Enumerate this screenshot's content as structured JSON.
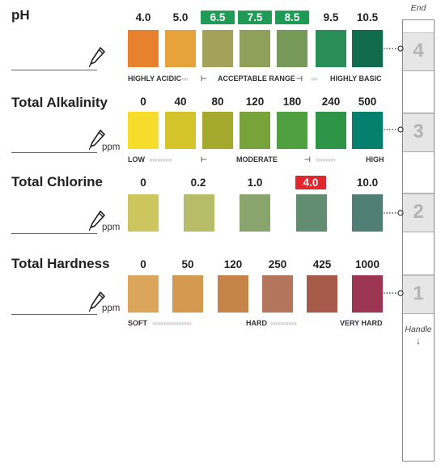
{
  "strip": {
    "end_label": "End",
    "handle_label": "Handle",
    "handle_arrow": "↓",
    "pads": [
      "4",
      "3",
      "2",
      "1"
    ]
  },
  "unit": "ppm",
  "sections": [
    {
      "title": "pH",
      "values": [
        {
          "label": "4.0",
          "color": "#E8812E"
        },
        {
          "label": "5.0",
          "color": "#E7A23A"
        },
        {
          "label": "6.5",
          "color": "#A3A25A",
          "highlight": "#1E9B55"
        },
        {
          "label": "7.5",
          "color": "#8FA05B",
          "highlight": "#1E9B55"
        },
        {
          "label": "8.5",
          "color": "#77995A",
          "highlight": "#1E9B55"
        },
        {
          "label": "9.5",
          "color": "#2A8E58"
        },
        {
          "label": "10.5",
          "color": "#116C4E"
        }
      ],
      "scale": {
        "low": "HIGHLY ACIDIC",
        "mid": "ACCEPTABLE RANGE",
        "high": "HIGHLY BASIC"
      }
    },
    {
      "title": "Total Alkalinity",
      "values": [
        {
          "label": "0",
          "color": "#F6DD2C"
        },
        {
          "label": "40",
          "color": "#D4C32B"
        },
        {
          "label": "80",
          "color": "#A5AA2F"
        },
        {
          "label": "120",
          "color": "#76A43B"
        },
        {
          "label": "180",
          "color": "#4FA040"
        },
        {
          "label": "240",
          "color": "#2E9448"
        },
        {
          "label": "500",
          "color": "#05806F"
        }
      ],
      "scale": {
        "low": "LOW",
        "mid": "MODERATE",
        "high": "HIGH"
      }
    },
    {
      "title": "Total Chlorine",
      "values": [
        {
          "label": "0",
          "color": "#CDC55E"
        },
        {
          "label": "0.2",
          "color": "#B6BC68"
        },
        {
          "label": "1.0",
          "color": "#8AA46D"
        },
        {
          "label": "4.0",
          "color": "#638D71",
          "highlight": "#E2262C"
        },
        {
          "label": "10.0",
          "color": "#4F7E74"
        }
      ]
    },
    {
      "title": "Total Hardness",
      "values": [
        {
          "label": "0",
          "color": "#DBA65C"
        },
        {
          "label": "50",
          "color": "#D49A50"
        },
        {
          "label": "120",
          "color": "#C68448"
        },
        {
          "label": "250",
          "color": "#B3765C"
        },
        {
          "label": "425",
          "color": "#A65A4A"
        },
        {
          "label": "1000",
          "color": "#9B3552"
        }
      ],
      "scale": {
        "low": "SOFT",
        "mid": "HARD",
        "high": "VERY HARD"
      }
    }
  ]
}
